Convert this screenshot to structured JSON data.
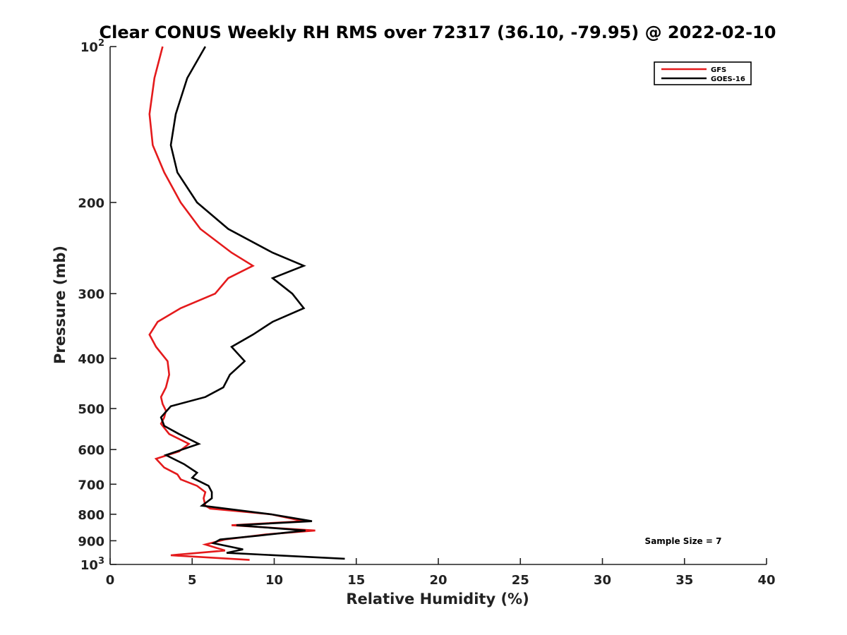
{
  "chart_data": {
    "type": "line",
    "title": "Clear CONUS Weekly RH RMS over 72317 (36.10, -79.95) @ 2022-02-10",
    "xlabel": "Relative Humidity (%)",
    "ylabel": "Pressure (mb)",
    "xlim": [
      0,
      40
    ],
    "ylim": [
      100,
      1000
    ],
    "y_scale": "log",
    "y_reversed": true,
    "grid": false,
    "legend_position": "top-right",
    "x_ticks": [
      "0",
      "5",
      "10",
      "15",
      "20",
      "25",
      "30",
      "35",
      "40"
    ],
    "y_ticks": [
      {
        "value": 100,
        "base": "10",
        "exp": "2"
      },
      {
        "value": 200,
        "label": "200"
      },
      {
        "value": 300,
        "label": "300"
      },
      {
        "value": 400,
        "label": "400"
      },
      {
        "value": 500,
        "label": "500"
      },
      {
        "value": 600,
        "label": "600"
      },
      {
        "value": 700,
        "label": "700"
      },
      {
        "value": 800,
        "label": "800"
      },
      {
        "value": 900,
        "label": "900"
      },
      {
        "value": 1000,
        "base": "10",
        "exp": "3"
      }
    ],
    "annotation": "Sample Size = 7",
    "series": [
      {
        "name": "GFS",
        "color": "#e41a1c",
        "points": [
          {
            "x": 3.2,
            "y": 100
          },
          {
            "x": 2.7,
            "y": 115
          },
          {
            "x": 2.4,
            "y": 135
          },
          {
            "x": 2.6,
            "y": 155
          },
          {
            "x": 3.3,
            "y": 175
          },
          {
            "x": 4.3,
            "y": 200
          },
          {
            "x": 5.5,
            "y": 225
          },
          {
            "x": 7.4,
            "y": 250
          },
          {
            "x": 8.7,
            "y": 265
          },
          {
            "x": 7.2,
            "y": 280
          },
          {
            "x": 6.4,
            "y": 300
          },
          {
            "x": 4.3,
            "y": 320
          },
          {
            "x": 2.9,
            "y": 340
          },
          {
            "x": 2.4,
            "y": 360
          },
          {
            "x": 2.8,
            "y": 380
          },
          {
            "x": 3.5,
            "y": 405
          },
          {
            "x": 3.6,
            "y": 430
          },
          {
            "x": 3.4,
            "y": 455
          },
          {
            "x": 3.1,
            "y": 475
          },
          {
            "x": 3.2,
            "y": 490
          },
          {
            "x": 3.4,
            "y": 505
          },
          {
            "x": 3.3,
            "y": 520
          },
          {
            "x": 3.1,
            "y": 535
          },
          {
            "x": 3.6,
            "y": 560
          },
          {
            "x": 4.8,
            "y": 585
          },
          {
            "x": 4.2,
            "y": 605
          },
          {
            "x": 2.8,
            "y": 625
          },
          {
            "x": 3.3,
            "y": 650
          },
          {
            "x": 4.1,
            "y": 670
          },
          {
            "x": 4.3,
            "y": 685
          },
          {
            "x": 5.3,
            "y": 705
          },
          {
            "x": 5.8,
            "y": 725
          },
          {
            "x": 5.7,
            "y": 745
          },
          {
            "x": 5.8,
            "y": 770
          },
          {
            "x": 6.1,
            "y": 780
          },
          {
            "x": 9.8,
            "y": 800
          },
          {
            "x": 11.8,
            "y": 825
          },
          {
            "x": 7.4,
            "y": 840
          },
          {
            "x": 12.5,
            "y": 860
          },
          {
            "x": 9.5,
            "y": 875
          },
          {
            "x": 7.0,
            "y": 895
          },
          {
            "x": 5.8,
            "y": 915
          },
          {
            "x": 7.0,
            "y": 940
          },
          {
            "x": 3.7,
            "y": 960
          },
          {
            "x": 8.5,
            "y": 980
          }
        ]
      },
      {
        "name": "GOES-16",
        "color": "#000000",
        "points": [
          {
            "x": 5.8,
            "y": 100
          },
          {
            "x": 4.7,
            "y": 115
          },
          {
            "x": 4.0,
            "y": 135
          },
          {
            "x": 3.7,
            "y": 155
          },
          {
            "x": 4.1,
            "y": 175
          },
          {
            "x": 5.3,
            "y": 200
          },
          {
            "x": 7.2,
            "y": 225
          },
          {
            "x": 9.9,
            "y": 250
          },
          {
            "x": 11.8,
            "y": 265
          },
          {
            "x": 9.9,
            "y": 280
          },
          {
            "x": 11.1,
            "y": 300
          },
          {
            "x": 11.8,
            "y": 320
          },
          {
            "x": 9.9,
            "y": 340
          },
          {
            "x": 8.7,
            "y": 360
          },
          {
            "x": 7.4,
            "y": 380
          },
          {
            "x": 8.2,
            "y": 405
          },
          {
            "x": 7.3,
            "y": 430
          },
          {
            "x": 6.9,
            "y": 455
          },
          {
            "x": 5.8,
            "y": 475
          },
          {
            "x": 3.7,
            "y": 495
          },
          {
            "x": 3.1,
            "y": 520
          },
          {
            "x": 3.3,
            "y": 540
          },
          {
            "x": 4.2,
            "y": 560
          },
          {
            "x": 5.4,
            "y": 585
          },
          {
            "x": 3.4,
            "y": 615
          },
          {
            "x": 4.5,
            "y": 640
          },
          {
            "x": 5.3,
            "y": 665
          },
          {
            "x": 5.0,
            "y": 680
          },
          {
            "x": 6.0,
            "y": 705
          },
          {
            "x": 6.2,
            "y": 725
          },
          {
            "x": 6.2,
            "y": 745
          },
          {
            "x": 5.6,
            "y": 770
          },
          {
            "x": 9.8,
            "y": 800
          },
          {
            "x": 12.3,
            "y": 825
          },
          {
            "x": 7.7,
            "y": 840
          },
          {
            "x": 11.9,
            "y": 860
          },
          {
            "x": 9.0,
            "y": 880
          },
          {
            "x": 6.7,
            "y": 895
          },
          {
            "x": 6.3,
            "y": 910
          },
          {
            "x": 8.1,
            "y": 935
          },
          {
            "x": 7.1,
            "y": 950
          },
          {
            "x": 14.3,
            "y": 975
          }
        ]
      }
    ]
  }
}
